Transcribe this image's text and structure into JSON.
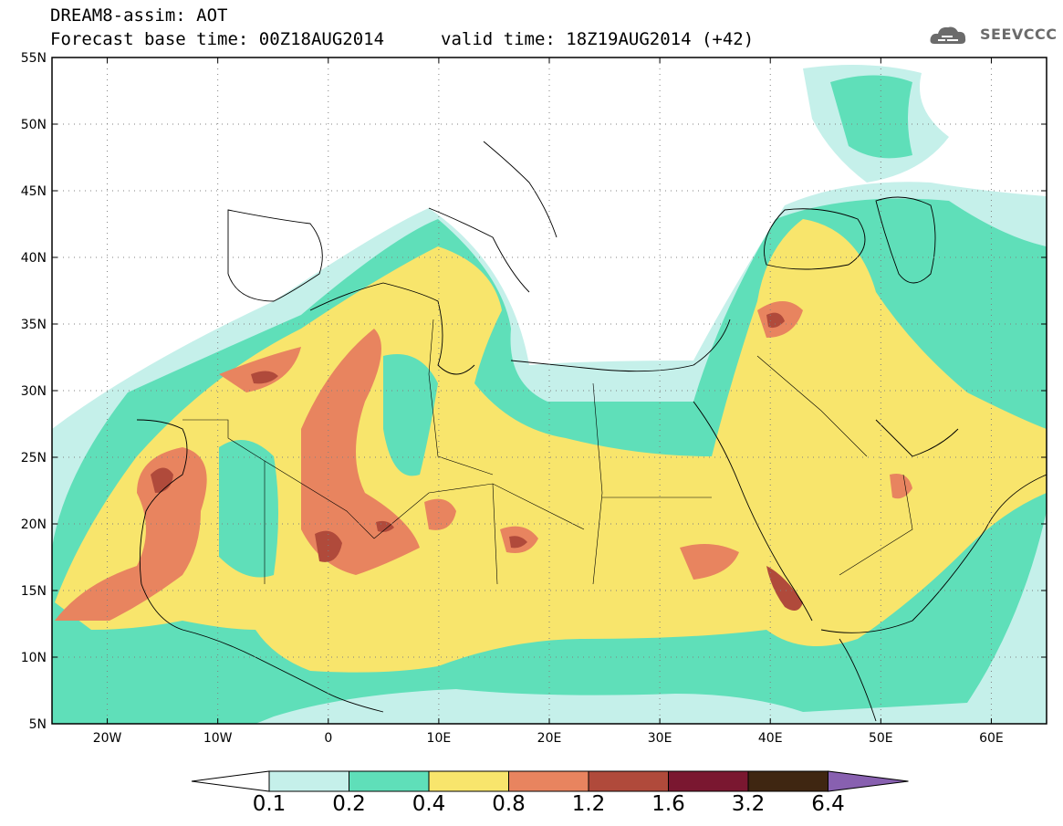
{
  "header": {
    "title": "DREAM8-assim: AOT",
    "base_time": "Forecast base time: 00Z18AUG2014",
    "valid_time": "valid time: 18Z19AUG2014 (+42)",
    "logo_text": "SEEVCCC"
  },
  "map": {
    "variable": "AOT",
    "lon_range": [
      -25,
      65
    ],
    "lat_range": [
      5,
      55
    ],
    "lat_ticks": [
      "55N",
      "50N",
      "45N",
      "40N",
      "35N",
      "30N",
      "25N",
      "20N",
      "15N",
      "10N",
      "5N"
    ],
    "lon_ticks": [
      "20W",
      "10W",
      "0",
      "10E",
      "20E",
      "30E",
      "40E",
      "50E",
      "60E"
    ],
    "grid": "dotted"
  },
  "colorbar": {
    "levels": [
      "0.1",
      "0.2",
      "0.4",
      "0.8",
      "1.2",
      "1.6",
      "3.2",
      "6.4"
    ],
    "colors": [
      "#c5f0ea",
      "#5fdfb9",
      "#f8e56c",
      "#e8845f",
      "#b04a3b",
      "#7a1730",
      "#3f2611",
      "#8860b0"
    ]
  }
}
